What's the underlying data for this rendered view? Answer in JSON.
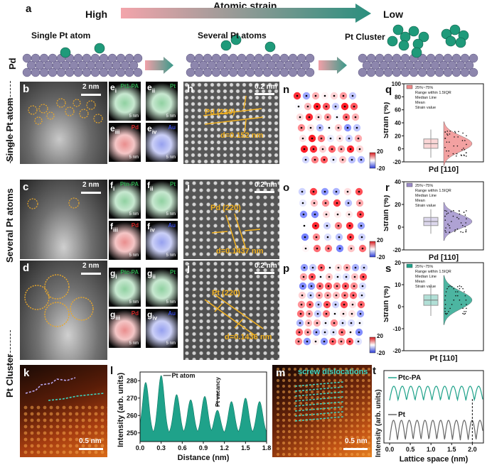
{
  "panel_a": {
    "letter": "a",
    "strain_title": "Atomic strain",
    "high": "High",
    "low": "Low",
    "single": "Single Pt atom",
    "several": "Several Pt atoms",
    "cluster": "Pt Cluster",
    "pd_label": "Pd"
  },
  "rows": {
    "single": "Single Pt atom",
    "several": "Several Pt atoms",
    "cluster": "Pt Cluster"
  },
  "letters": {
    "b": "b",
    "c": "c",
    "d": "d",
    "h": "h",
    "i": "i",
    "j": "j",
    "n": "n",
    "o": "o",
    "p": "p",
    "q": "q",
    "r": "r",
    "s": "s",
    "k": "k",
    "l": "l",
    "m": "m",
    "t": "t"
  },
  "scalebars": {
    "two_nm": "2 nm",
    "point2_nm": "0.2 nm",
    "five_nm": "5 nm",
    "point5_nm": "0.5 nm"
  },
  "eds": {
    "e": [
      "e",
      "e",
      "e",
      "e"
    ],
    "e_sub": [
      "i",
      "ii",
      "iii",
      "iv"
    ],
    "f": [
      "f",
      "f",
      "f",
      "f"
    ],
    "g": [
      "g",
      "g",
      "g",
      "g"
    ],
    "single_titles": [
      "Pt1-PA",
      "Pt",
      "Pd",
      "Au"
    ],
    "several_titles": [
      "Ptn-PA",
      "Pt",
      "Pd",
      "Au"
    ],
    "cluster_titles": [
      "Ptc-PA",
      "Pt",
      "Pd",
      "Au"
    ],
    "colors": [
      "#2fa84f",
      "#2fa84f",
      "#d62a2a",
      "#3a4de0"
    ]
  },
  "hrtem": {
    "h": {
      "plane": "Pd (220)",
      "d": "d=0.152 nm"
    },
    "i": {
      "plane": "Pd (220)",
      "d": "d=0.1437 nm"
    },
    "j": {
      "plane": "Pt (220)",
      "d": "d=0.1436 nm"
    }
  },
  "colorbar": {
    "max": "20",
    "min": "-20"
  },
  "m_title": "screw dislocations",
  "violin": {
    "ylabel": "Strain (%)",
    "legend": [
      "25%~75%",
      "Range within 1.5IQR",
      "Median Line",
      "Mean",
      "Strain value"
    ],
    "q": {
      "xlabel": "Pd [110]",
      "color": "#f08a8a",
      "ylim": [
        -20,
        100
      ],
      "ticks": [
        "100",
        "80",
        "60",
        "40",
        "20",
        "0",
        "-20"
      ]
    },
    "r": {
      "xlabel": "Pd [110]",
      "color": "#9b8bc9",
      "ylim": [
        -20,
        40
      ],
      "ticks": [
        "40",
        "20",
        "0",
        "-20"
      ]
    },
    "s": {
      "xlabel": "Pt [110]",
      "color": "#1fa28a",
      "ylim": [
        -20,
        20
      ],
      "ticks": [
        "20",
        "10",
        "0",
        "-10",
        "-20"
      ]
    }
  },
  "chart_data": [
    {
      "type": "bar",
      "title": "",
      "xlabel": "Distance (nm)",
      "ylabel": "Intensity (arb. units)",
      "xlim": [
        0,
        1.8
      ],
      "ylim": [
        245,
        285
      ],
      "xticks": [
        "0.0",
        "0.3",
        "0.6",
        "0.9",
        "1.2",
        "1.5",
        "1.8"
      ],
      "yticks": [
        "250",
        "260",
        "270",
        "280"
      ],
      "annotations": [
        "Pt atom",
        "Pt vacancy"
      ],
      "peaks": [
        [
          0.08,
          279
        ],
        [
          0.3,
          283
        ],
        [
          0.52,
          272
        ],
        [
          0.72,
          269
        ],
        [
          0.92,
          271
        ],
        [
          1.1,
          263
        ],
        [
          1.3,
          268
        ],
        [
          1.5,
          270
        ],
        [
          1.7,
          268
        ]
      ]
    },
    {
      "type": "line",
      "title": "",
      "xlabel": "Lattice space (nm)",
      "ylabel": "Intensity (arb. units)",
      "xticks": [
        "0.0",
        "0.5",
        "1.0",
        "1.5",
        "2.0"
      ],
      "series": [
        {
          "name": "Ptc-PA",
          "color": "#1fa28a"
        },
        {
          "name": "Pt",
          "color": "#666666"
        }
      ]
    }
  ]
}
